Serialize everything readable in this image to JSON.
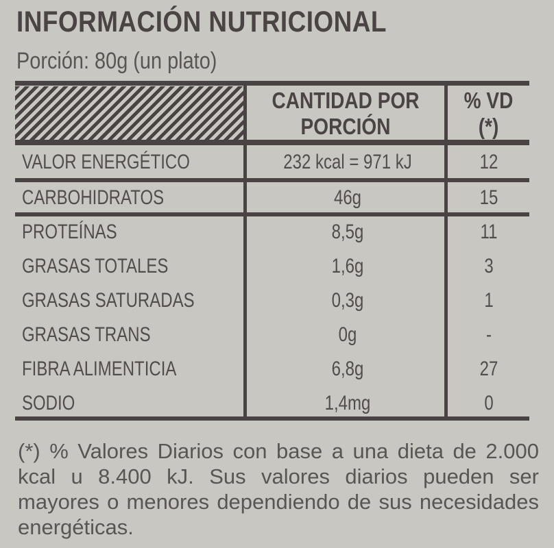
{
  "title": "INFORMACIÓN NUTRICIONAL",
  "portion": "Porción: 80g (un plato)",
  "header": {
    "amount_line1": "CANTIDAD POR",
    "amount_line2": "PORCIÓN",
    "vd_line1": "% VD",
    "vd_line2": "(*)"
  },
  "rows": [
    {
      "nutrient": "VALOR ENERGÉTICO",
      "amount": "232 kcal = 971 kJ",
      "vd": "12"
    },
    {
      "nutrient": "CARBOHIDRATOS",
      "amount": "46g",
      "vd": "15"
    },
    {
      "nutrient": "PROTEÍNAS",
      "amount": "8,5g",
      "vd": "11"
    },
    {
      "nutrient": "GRASAS TOTALES",
      "amount": "1,6g",
      "vd": "3"
    },
    {
      "nutrient": "GRASAS SATURADAS",
      "amount": "0,3g",
      "vd": "1"
    },
    {
      "nutrient": "GRASAS TRANS",
      "amount": "0g",
      "vd": "-"
    },
    {
      "nutrient": "FIBRA ALIMENTICIA",
      "amount": "6,8g",
      "vd": "27"
    },
    {
      "nutrient": "SODIO",
      "amount": "1,4mg",
      "vd": "0"
    }
  ],
  "footnote": "(*) % Valores Diarios con base a una dieta de 2.000 kcal u 8.400 kJ. Sus valores diarios pueden ser mayores o menores dependiendo de sus necesidades energéticas."
}
